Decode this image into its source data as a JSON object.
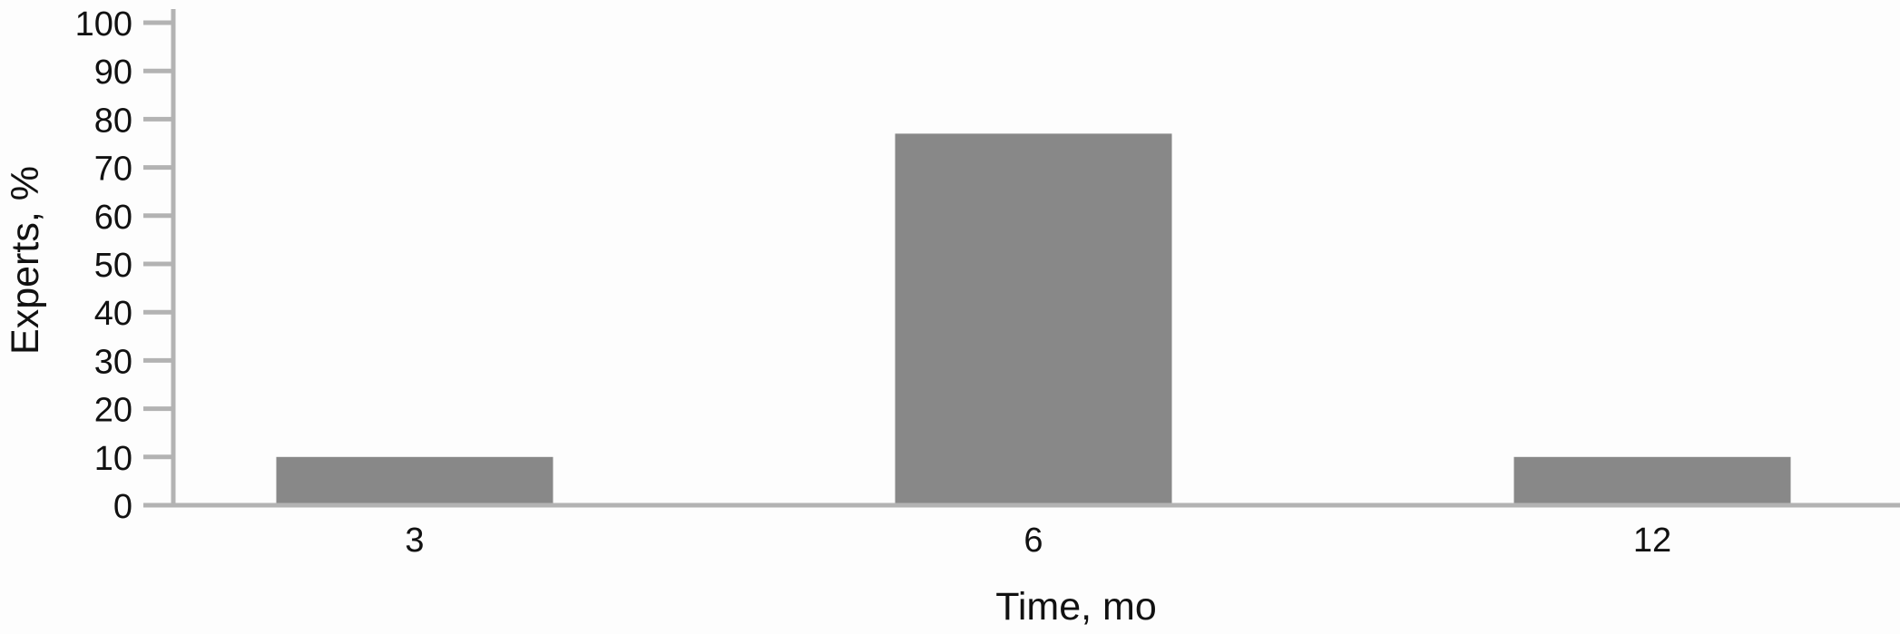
{
  "chart_data": {
    "type": "bar",
    "title": "",
    "xlabel": "Time, mo",
    "ylabel": "Experts, %",
    "categories": [
      "3",
      "6",
      "12"
    ],
    "values": [
      10,
      77,
      10
    ],
    "ylim": [
      0,
      100
    ],
    "yticks": [
      0,
      10,
      20,
      30,
      40,
      50,
      60,
      70,
      80,
      90,
      100
    ],
    "grid": false,
    "legend": "none",
    "colors": {
      "bar": "#888888",
      "axis": "#b3b3b3",
      "background": "#fdfdfd"
    }
  }
}
